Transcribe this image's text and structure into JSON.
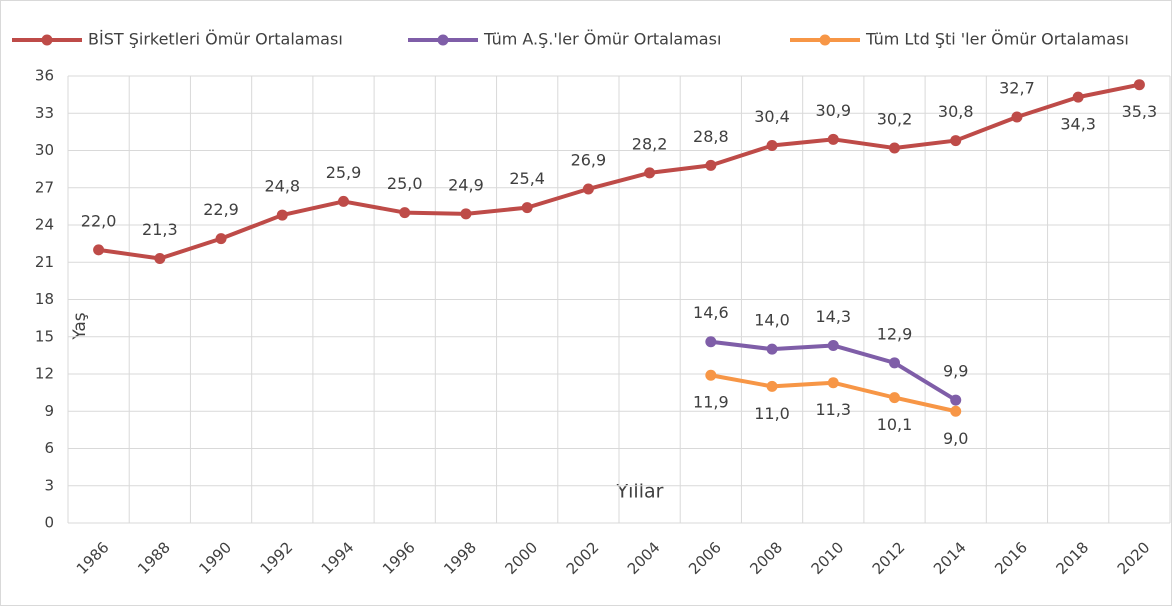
{
  "chart_data": {
    "type": "line",
    "x_label": "Yıllar",
    "y_label": "Yaş",
    "categories": [
      "1986",
      "1988",
      "1990",
      "1992",
      "1994",
      "1996",
      "1998",
      "2000",
      "2002",
      "2004",
      "2006",
      "2008",
      "2010",
      "2012",
      "2014",
      "2016",
      "2018",
      "2020"
    ],
    "series": [
      {
        "name": "BİST Şirketleri Ömür Ortalaması",
        "color": "#be4b48",
        "values": [
          22.0,
          21.3,
          22.9,
          24.8,
          25.9,
          25.0,
          24.9,
          25.4,
          26.9,
          28.2,
          28.8,
          30.4,
          30.9,
          30.2,
          30.8,
          32.7,
          34.3,
          35.3
        ],
        "value_labels": [
          "22,0",
          "21,3",
          "22,9",
          "24,8",
          "25,9",
          "25,0",
          "24,9",
          "25,4",
          "26,9",
          "28,2",
          "28,8",
          "30,4",
          "30,9",
          "30,2",
          "30,8",
          "32,7",
          "34,3",
          "35,3"
        ]
      },
      {
        "name": "Tüm A.Ş.'ler Ömür Ortalaması",
        "color": "#7f5ea8",
        "values": [
          null,
          null,
          null,
          null,
          null,
          null,
          null,
          null,
          null,
          null,
          14.6,
          14.0,
          14.3,
          12.9,
          9.9,
          null,
          null,
          null
        ],
        "value_labels": [
          null,
          null,
          null,
          null,
          null,
          null,
          null,
          null,
          null,
          null,
          "14,6",
          "14,0",
          "14,3",
          "12,9",
          "9,9",
          null,
          null,
          null
        ]
      },
      {
        "name": "Tüm Ltd Şti 'ler Ömür Ortalaması",
        "color": "#f79646",
        "values": [
          null,
          null,
          null,
          null,
          null,
          null,
          null,
          null,
          null,
          null,
          11.9,
          11.0,
          11.3,
          10.1,
          9.0,
          null,
          null,
          null
        ],
        "value_labels": [
          null,
          null,
          null,
          null,
          null,
          null,
          null,
          null,
          null,
          null,
          "11,9",
          "11,0",
          "11,3",
          "10,1",
          "9,0",
          null,
          null,
          null
        ]
      }
    ],
    "ylim": [
      0,
      36
    ],
    "yticks": [
      0,
      3,
      6,
      9,
      12,
      15,
      18,
      21,
      24,
      27,
      30,
      33,
      36
    ],
    "grid": true,
    "legend": "top"
  }
}
